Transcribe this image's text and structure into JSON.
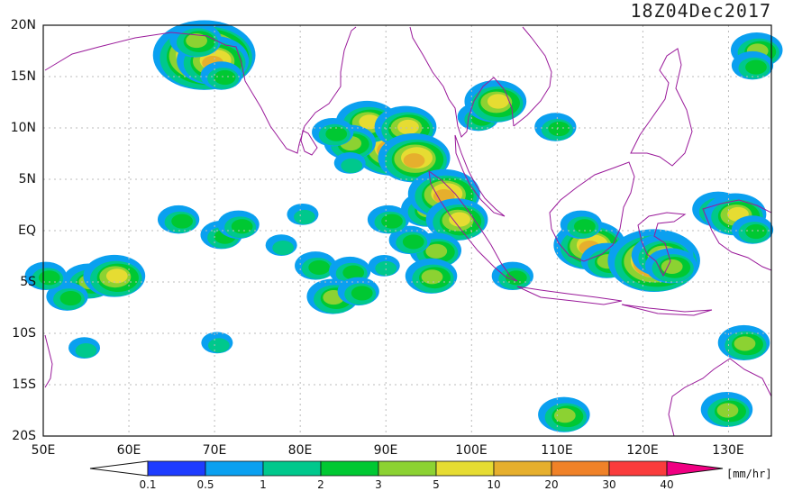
{
  "title": "18Z04Dec2017",
  "lat_labels": [
    "20N",
    "15N",
    "10N",
    "5N",
    "EQ",
    "5S",
    "10S",
    "15S",
    "20S"
  ],
  "lon_labels": [
    "50E",
    "60E",
    "70E",
    "80E",
    "90E",
    "100E",
    "110E",
    "120E",
    "130E"
  ],
  "colorbar": {
    "unit": "[mm/hr]",
    "labels": [
      "0.1",
      "0.5",
      "1",
      "2",
      "3",
      "5",
      "10",
      "20",
      "30",
      "40"
    ],
    "colors": [
      "#1e3cff",
      "#0aa0f0",
      "#00c88c",
      "#00c832",
      "#8cd232",
      "#e6dc32",
      "#e6af2d",
      "#f08228",
      "#fa3c3c",
      "#f00082"
    ]
  },
  "chart_data": {
    "type": "heatmap",
    "title": "18Z04Dec2017",
    "unit": "[mm/hr]",
    "lon_range": [
      50,
      135
    ],
    "lat_range": [
      -20,
      20
    ],
    "rain_cells": [
      [
        68.5,
        17.5,
        5
      ],
      [
        69.0,
        17.0,
        9
      ],
      [
        70.0,
        16.5,
        6
      ],
      [
        68.0,
        18.5,
        4
      ],
      [
        71.0,
        15.0,
        3
      ],
      [
        89.5,
        9.5,
        6
      ],
      [
        91.0,
        8.0,
        7
      ],
      [
        88.0,
        10.5,
        5
      ],
      [
        86.0,
        8.5,
        4
      ],
      [
        92.5,
        10.0,
        5
      ],
      [
        84.0,
        9.5,
        3
      ],
      [
        86.0,
        6.5,
        2
      ],
      [
        93.5,
        7.0,
        6
      ],
      [
        95.0,
        2.0,
        4
      ],
      [
        97.0,
        3.5,
        6
      ],
      [
        98.5,
        1.0,
        5
      ],
      [
        96.0,
        -2.0,
        4
      ],
      [
        93.0,
        -1.0,
        3
      ],
      [
        95.5,
        -4.5,
        4
      ],
      [
        101.0,
        11.0,
        3
      ],
      [
        103.0,
        12.5,
        5
      ],
      [
        110.0,
        10.0,
        3
      ],
      [
        114.0,
        -1.5,
        6
      ],
      [
        113.0,
        0.5,
        3
      ],
      [
        116.0,
        -3.0,
        4
      ],
      [
        121.5,
        -3.0,
        8
      ],
      [
        122.5,
        -2.5,
        5
      ],
      [
        123.5,
        -3.5,
        4
      ],
      [
        129.0,
        2.0,
        4
      ],
      [
        131.0,
        1.5,
        5
      ],
      [
        133.0,
        0.0,
        3
      ],
      [
        132.0,
        -11.0,
        4
      ],
      [
        130.0,
        -17.5,
        4
      ],
      [
        111.0,
        -18.0,
        4
      ],
      [
        55.5,
        -5.0,
        4
      ],
      [
        58.5,
        -4.5,
        5
      ],
      [
        53.0,
        -6.5,
        3
      ],
      [
        50.5,
        -4.5,
        3
      ],
      [
        66.0,
        1.0,
        3
      ],
      [
        71.0,
        -0.5,
        3
      ],
      [
        73.0,
        0.5,
        3
      ],
      [
        78.0,
        -1.5,
        2
      ],
      [
        82.0,
        -3.5,
        3
      ],
      [
        86.0,
        -4.0,
        3
      ],
      [
        90.0,
        -3.5,
        2
      ],
      [
        84.0,
        -6.5,
        4
      ],
      [
        87.0,
        -6.0,
        3
      ],
      [
        70.5,
        -11.0,
        2
      ],
      [
        55.0,
        -11.5,
        2
      ],
      [
        80.5,
        1.5,
        2
      ],
      [
        90.5,
        1.0,
        3
      ],
      [
        133.5,
        17.5,
        4
      ],
      [
        133.0,
        16.0,
        3
      ],
      [
        105.0,
        -4.5,
        3
      ]
    ]
  }
}
